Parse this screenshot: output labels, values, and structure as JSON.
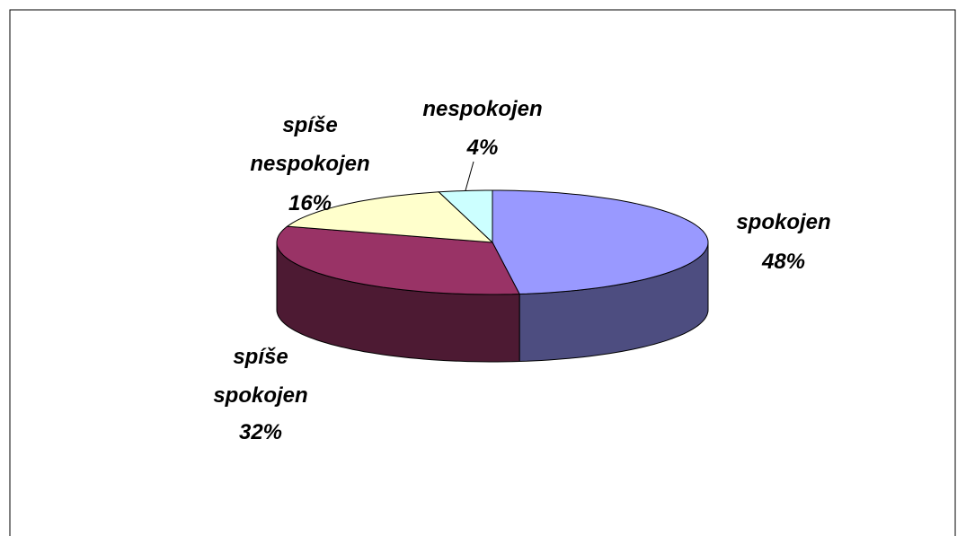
{
  "chart_data": {
    "type": "pie",
    "style": "3d",
    "categories": [
      "spokojen",
      "spíše spokojen",
      "spíše nespokojen",
      "nespokojen"
    ],
    "values": [
      48,
      32,
      16,
      4
    ],
    "value_labels": [
      "48%",
      "32%",
      "16%",
      "4%"
    ],
    "colors": [
      "#9999ff",
      "#993366",
      "#ffffcc",
      "#ccffff"
    ]
  }
}
